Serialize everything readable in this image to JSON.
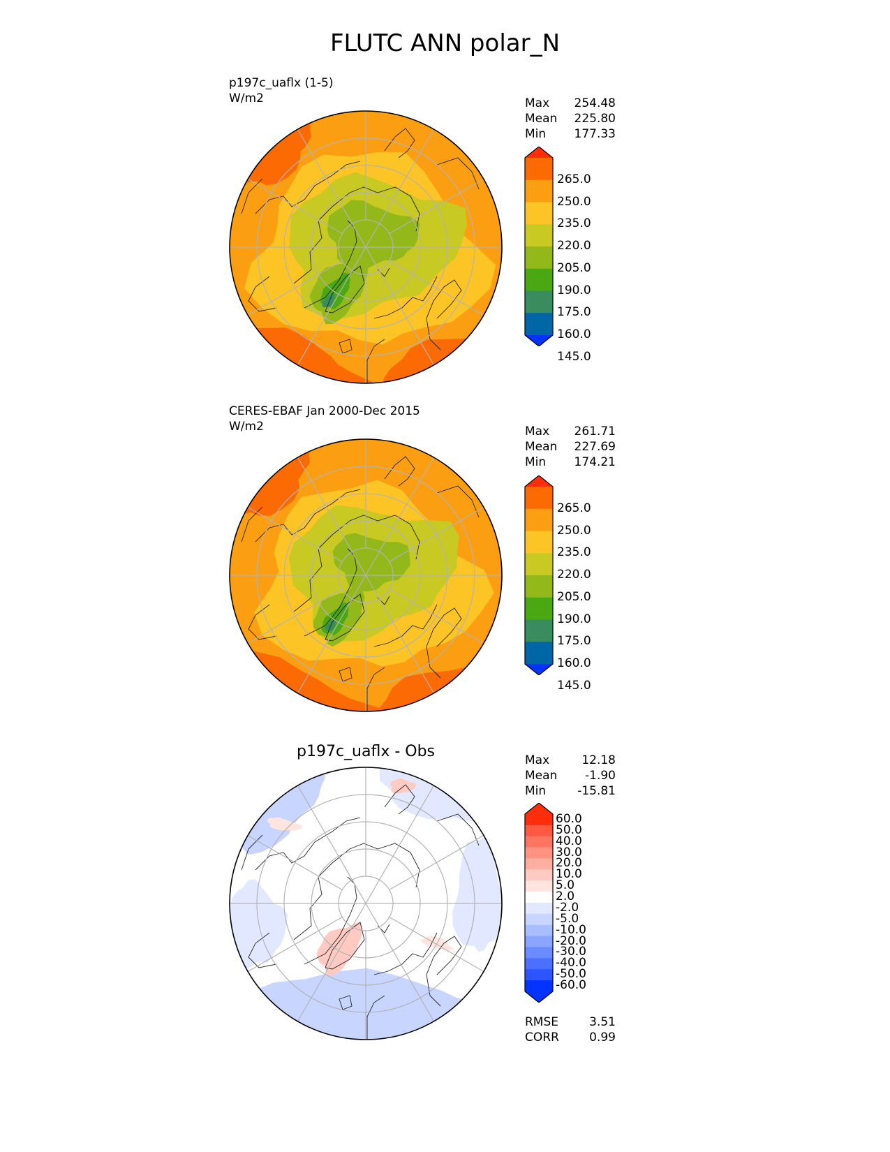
{
  "title": "FLUTC ANN polar_N",
  "panels": [
    {
      "label": "p197c_uaflx (1-5)",
      "units": "W/m2",
      "stats": {
        "max": "254.48",
        "mean": "225.80",
        "min": "177.33"
      },
      "colorbar_ticks": [
        "265.0",
        "250.0",
        "235.0",
        "220.0",
        "205.0",
        "190.0",
        "175.0",
        "160.0",
        "145.0"
      ]
    },
    {
      "label": "CERES-EBAF Jan 2000-Dec 2015",
      "units": "W/m2",
      "stats": {
        "max": "261.71",
        "mean": "227.69",
        "min": "174.21"
      },
      "colorbar_ticks": [
        "265.0",
        "250.0",
        "235.0",
        "220.0",
        "205.0",
        "190.0",
        "175.0",
        "160.0",
        "145.0"
      ]
    },
    {
      "title": "p197c_uaflx - Obs",
      "stats": {
        "max": "12.18",
        "mean": "-1.90",
        "min": "-15.81"
      },
      "colorbar_ticks": [
        "60.0",
        "50.0",
        "40.0",
        "30.0",
        "20.0",
        "10.0",
        "5.0",
        "2.0",
        "-2.0",
        "-5.0",
        "-10.0",
        "-20.0",
        "-30.0",
        "-40.0",
        "-50.0",
        "-60.0"
      ],
      "rmse": "3.51",
      "corr": "0.99"
    }
  ],
  "stat_labels": {
    "max": "Max",
    "mean": "Mean",
    "min": "Min",
    "rmse": "RMSE",
    "corr": "CORR"
  },
  "colors": {
    "abs_levels": [
      "#0433ff",
      "#0066a6",
      "#388c5e",
      "#4aa812",
      "#92b81a",
      "#c9c924",
      "#fcc424",
      "#fc9e12",
      "#fc6a03",
      "#ff2e0a"
    ],
    "diff_levels": [
      "#0433ff",
      "#2d54ff",
      "#4b70ff",
      "#6b8bff",
      "#8aa5ff",
      "#a8beff",
      "#c8d5ff",
      "#e1e8ff",
      "#ffffff",
      "#ffe4e0",
      "#ffcac2",
      "#ffafa2",
      "#ff9282",
      "#ff7561",
      "#ff5a41",
      "#ff2e0a"
    ]
  }
}
